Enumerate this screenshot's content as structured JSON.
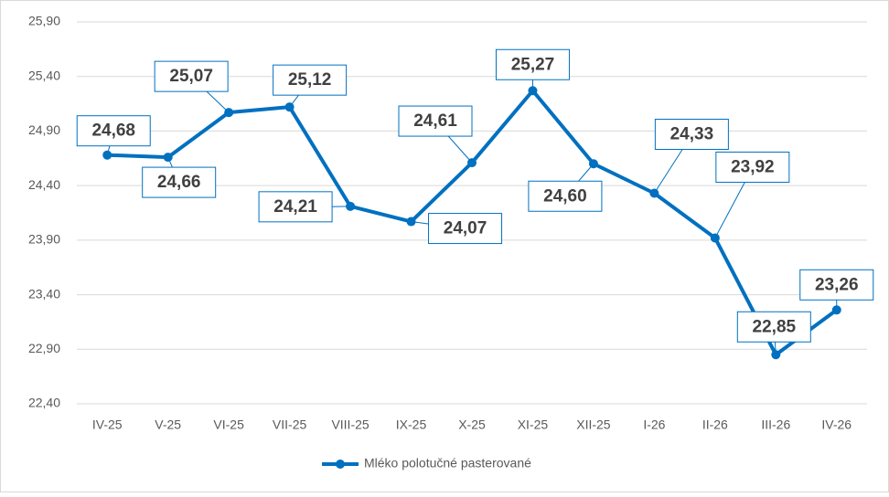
{
  "chart_data": {
    "type": "line",
    "categories": [
      "IV-25",
      "V-25",
      "VI-25",
      "VII-25",
      "VIII-25",
      "IX-25",
      "X-25",
      "XI-25",
      "XII-25",
      "I-26",
      "II-26",
      "III-26",
      "IV-26"
    ],
    "series": [
      {
        "name": "Mléko polotučné pasterované",
        "color": "#0070c0",
        "values": [
          24.68,
          24.66,
          25.07,
          25.12,
          24.21,
          24.07,
          24.61,
          25.27,
          24.6,
          24.33,
          23.92,
          22.85,
          23.26
        ],
        "value_labels": [
          "24,68",
          "24,66",
          "25,07",
          "25,12",
          "24,21",
          "24,07",
          "24,61",
          "25,27",
          "24,60",
          "24,33",
          "23,92",
          "22,85",
          "23,26"
        ]
      }
    ],
    "ylim": [
      22.4,
      25.9
    ],
    "yticks": [
      {
        "value": 22.4,
        "label": "22,40"
      },
      {
        "value": 22.9,
        "label": "22,90"
      },
      {
        "value": 23.4,
        "label": "23,40"
      },
      {
        "value": 23.9,
        "label": "23,90"
      },
      {
        "value": 24.4,
        "label": "24,40"
      },
      {
        "value": 24.9,
        "label": "24,90"
      },
      {
        "value": 25.4,
        "label": "25,40"
      },
      {
        "value": 25.9,
        "label": "25,90"
      }
    ],
    "grid": true,
    "legend": "bottom"
  }
}
